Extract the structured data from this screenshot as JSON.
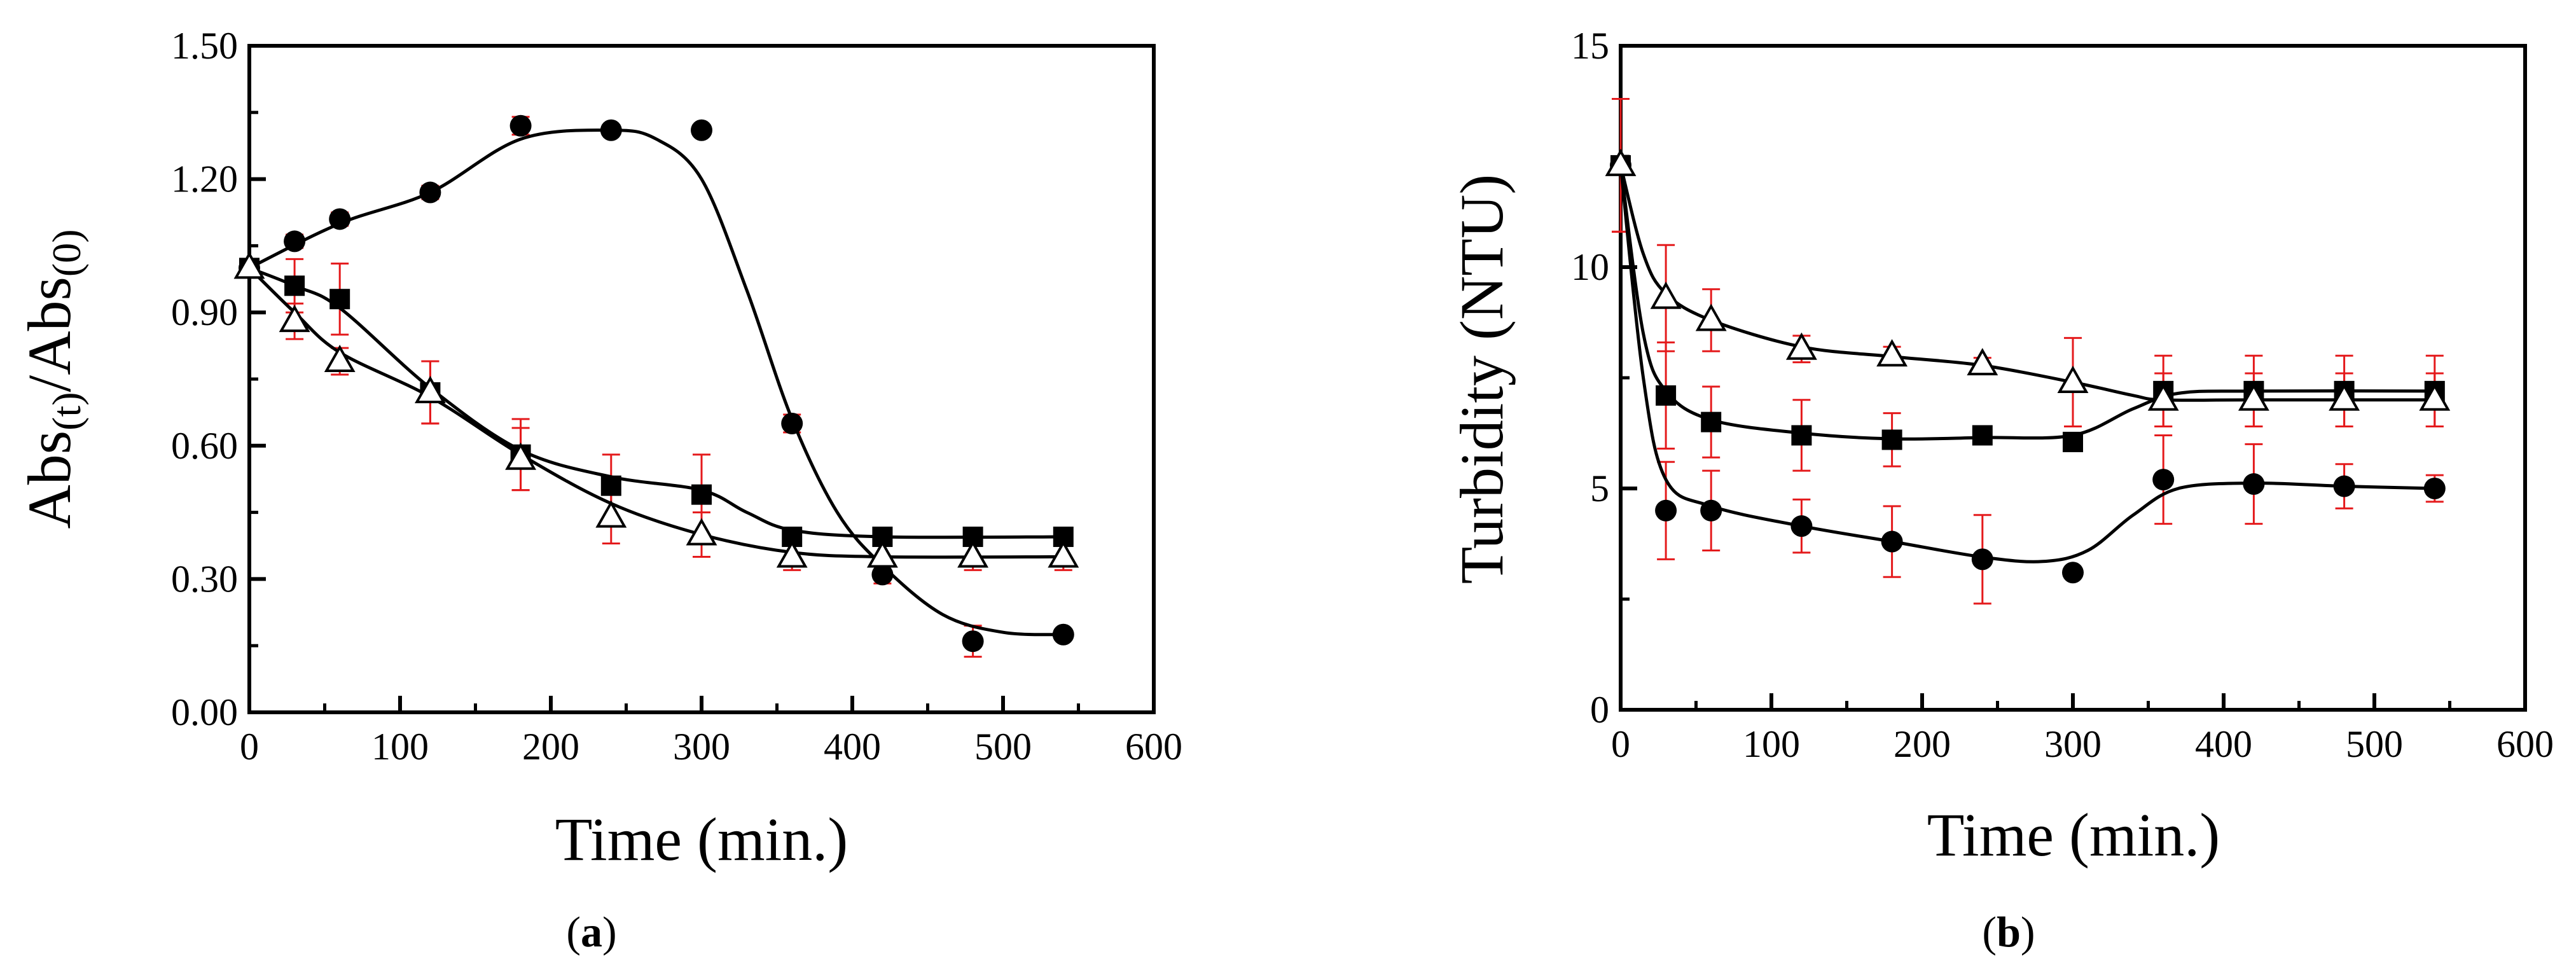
{
  "chart_data": [
    {
      "type": "scatter",
      "panel_label": "a",
      "xlabel": "Time (min.)",
      "ylabel_parts": [
        "Abs",
        "(t)",
        "/Abs",
        "(0)"
      ],
      "xlim": [
        0,
        600
      ],
      "ylim": [
        0,
        1.5
      ],
      "xticks": [
        0,
        100,
        200,
        300,
        400,
        500,
        600
      ],
      "xtick_labels": [
        "0",
        "100",
        "200",
        "300",
        "400",
        "500",
        "600"
      ],
      "yticks": [
        0,
        0.3,
        0.6,
        0.9,
        1.2,
        1.5
      ],
      "ytick_labels": [
        "0.00",
        "0.30",
        "0.60",
        "0.90",
        "1.20",
        "1.50"
      ],
      "series": [
        {
          "marker": "circle",
          "x": [
            0,
            30,
            60,
            120,
            180,
            240,
            300,
            360,
            420,
            480,
            540
          ],
          "y": [
            1.0,
            1.06,
            1.11,
            1.17,
            1.32,
            1.31,
            1.31,
            0.65,
            0.31,
            0.16,
            0.175
          ],
          "err": [
            0.01,
            0.015,
            0.015,
            0.015,
            0.02,
            0.01,
            0.01,
            0.02,
            0.02,
            0.035,
            0.01
          ],
          "fit": [
            [
              0,
              1.0
            ],
            [
              60,
              1.1
            ],
            [
              120,
              1.17
            ],
            [
              180,
              1.29
            ],
            [
              240,
              1.31
            ],
            [
              270,
              1.29
            ],
            [
              300,
              1.2
            ],
            [
              330,
              0.95
            ],
            [
              360,
              0.66
            ],
            [
              390,
              0.45
            ],
            [
              420,
              0.33
            ],
            [
              460,
              0.22
            ],
            [
              500,
              0.18
            ],
            [
              540,
              0.175
            ]
          ]
        },
        {
          "marker": "square",
          "x": [
            0,
            30,
            60,
            120,
            180,
            240,
            300,
            360,
            420,
            480,
            540
          ],
          "y": [
            1.0,
            0.96,
            0.93,
            0.72,
            0.58,
            0.51,
            0.49,
            0.395,
            0.395,
            0.395,
            0.395
          ],
          "err": [
            0.01,
            0.06,
            0.08,
            0.07,
            0.08,
            0.07,
            0.09,
            0.02,
            0.01,
            0.01,
            0.01
          ],
          "fit": [
            [
              0,
              1.0
            ],
            [
              30,
              0.96
            ],
            [
              60,
              0.91
            ],
            [
              120,
              0.73
            ],
            [
              180,
              0.59
            ],
            [
              240,
              0.53
            ],
            [
              300,
              0.5
            ],
            [
              330,
              0.45
            ],
            [
              360,
              0.41
            ],
            [
              420,
              0.395
            ],
            [
              540,
              0.395
            ]
          ]
        },
        {
          "marker": "triangle-open",
          "x": [
            0,
            30,
            60,
            120,
            180,
            240,
            300,
            360,
            420,
            480,
            540
          ],
          "y": [
            1.0,
            0.88,
            0.79,
            0.72,
            0.57,
            0.44,
            0.4,
            0.35,
            0.35,
            0.35,
            0.35
          ],
          "err": [
            0.01,
            0.04,
            0.03,
            0.07,
            0.07,
            0.06,
            0.05,
            0.03,
            0.03,
            0.03,
            0.03
          ],
          "fit": [
            [
              0,
              1.0
            ],
            [
              30,
              0.9
            ],
            [
              60,
              0.81
            ],
            [
              120,
              0.71
            ],
            [
              180,
              0.58
            ],
            [
              240,
              0.47
            ],
            [
              300,
              0.4
            ],
            [
              360,
              0.36
            ],
            [
              420,
              0.35
            ],
            [
              540,
              0.35
            ]
          ]
        }
      ]
    },
    {
      "type": "scatter",
      "panel_label": "b",
      "xlabel": "Time (min.)",
      "ylabel": "Turbidity (NTU)",
      "xlim": [
        0,
        600
      ],
      "ylim": [
        0,
        15
      ],
      "xticks": [
        0,
        100,
        200,
        300,
        400,
        500,
        600
      ],
      "xtick_labels": [
        "0",
        "100",
        "200",
        "300",
        "400",
        "500",
        "600"
      ],
      "yticks": [
        0,
        5,
        10,
        15
      ],
      "ytick_labels": [
        "0",
        "5",
        "10",
        "15"
      ],
      "series": [
        {
          "marker": "circle",
          "x": [
            0,
            30,
            60,
            120,
            180,
            240,
            300,
            360,
            420,
            480,
            540
          ],
          "y": [
            12.3,
            4.5,
            4.5,
            4.15,
            3.8,
            3.4,
            3.1,
            5.2,
            5.1,
            5.05,
            5.0
          ],
          "err": [
            1.5,
            1.1,
            0.9,
            0.6,
            0.8,
            1.0,
            0.1,
            1.0,
            0.9,
            0.5,
            0.3
          ],
          "fit": [
            [
              0,
              12.3
            ],
            [
              15,
              7.5
            ],
            [
              30,
              5.2
            ],
            [
              60,
              4.6
            ],
            [
              120,
              4.15
            ],
            [
              180,
              3.8
            ],
            [
              240,
              3.45
            ],
            [
              280,
              3.35
            ],
            [
              310,
              3.6
            ],
            [
              340,
              4.4
            ],
            [
              370,
              5.0
            ],
            [
              420,
              5.12
            ],
            [
              480,
              5.05
            ],
            [
              540,
              5.0
            ]
          ]
        },
        {
          "marker": "square",
          "x": [
            0,
            30,
            60,
            120,
            180,
            240,
            300,
            360,
            420,
            480,
            540
          ],
          "y": [
            12.3,
            7.1,
            6.5,
            6.2,
            6.1,
            6.2,
            6.05,
            7.2,
            7.2,
            7.2,
            7.2
          ],
          "err": [
            1.5,
            1.2,
            0.8,
            0.8,
            0.6,
            0.1,
            0.1,
            0.8,
            0.8,
            0.8,
            0.8
          ],
          "fit": [
            [
              0,
              12.3
            ],
            [
              15,
              8.5
            ],
            [
              30,
              7.2
            ],
            [
              60,
              6.55
            ],
            [
              120,
              6.25
            ],
            [
              180,
              6.12
            ],
            [
              240,
              6.15
            ],
            [
              300,
              6.2
            ],
            [
              340,
              6.8
            ],
            [
              370,
              7.15
            ],
            [
              420,
              7.2
            ],
            [
              540,
              7.2
            ]
          ]
        },
        {
          "marker": "triangle-open",
          "x": [
            0,
            30,
            60,
            120,
            180,
            240,
            300,
            360,
            420,
            480,
            540
          ],
          "y": [
            12.3,
            9.3,
            8.8,
            8.15,
            8.0,
            7.8,
            7.4,
            7.0,
            7.0,
            7.0,
            7.0
          ],
          "err": [
            1.5,
            1.2,
            0.7,
            0.3,
            0.2,
            0.15,
            1.0,
            0.6,
            0.6,
            0.6,
            0.6
          ],
          "fit": [
            [
              0,
              12.3
            ],
            [
              15,
              10.3
            ],
            [
              30,
              9.4
            ],
            [
              60,
              8.8
            ],
            [
              120,
              8.2
            ],
            [
              180,
              7.98
            ],
            [
              240,
              7.78
            ],
            [
              300,
              7.4
            ],
            [
              340,
              7.1
            ],
            [
              360,
              7.0
            ],
            [
              420,
              7.0
            ],
            [
              540,
              7.0
            ]
          ]
        }
      ]
    }
  ]
}
